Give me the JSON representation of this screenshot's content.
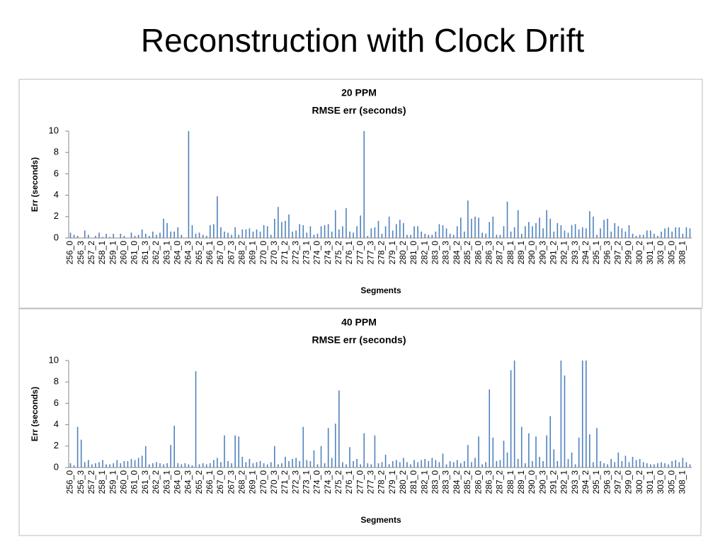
{
  "title": "Reconstruction with Clock Drift",
  "chart_data": [
    {
      "type": "bar",
      "title": "20 PPM",
      "subtitle": "RMSE err (seconds)",
      "y_label": "Err (seconds)",
      "x_label": "Segments",
      "color": "#4f81bd",
      "ylim": [
        0,
        10
      ],
      "yticks": [
        0,
        2,
        4,
        6,
        8,
        10
      ],
      "categories": [
        "256_0",
        null,
        null,
        "256_3",
        null,
        null,
        "257_2",
        null,
        null,
        "258_1",
        null,
        null,
        "259_1",
        null,
        null,
        "260_0",
        null,
        null,
        "261_0",
        null,
        null,
        "261_3",
        null,
        null,
        "262_2",
        null,
        null,
        "263_1",
        null,
        null,
        "264_0",
        null,
        null,
        "264_3",
        null,
        null,
        "265_2",
        null,
        null,
        "266_1",
        null,
        null,
        "267_0",
        null,
        null,
        "267_3",
        null,
        null,
        "268_2",
        null,
        null,
        "269_1",
        null,
        null,
        "270_0",
        null,
        null,
        "270_3",
        null,
        null,
        "271_2",
        null,
        null,
        "272_3",
        null,
        null,
        "273_1",
        null,
        null,
        "274_0",
        null,
        null,
        "274_3",
        null,
        null,
        "275_2",
        null,
        null,
        "276_1",
        null,
        null,
        "277_0",
        null,
        null,
        "277_3",
        null,
        null,
        "278_2",
        null,
        null,
        "279_1",
        null,
        null,
        "280_2",
        null,
        null,
        "281_0",
        null,
        null,
        "282_1",
        null,
        null,
        "283_0",
        null,
        null,
        "283_3",
        null,
        null,
        "284_2",
        null,
        null,
        "285_2",
        null,
        null,
        "286_0",
        null,
        null,
        "286_3",
        null,
        null,
        "287_2",
        null,
        null,
        "288_1",
        null,
        null,
        "289_1",
        null,
        null,
        "290_0",
        null,
        null,
        "290_3",
        null,
        null,
        "291_2",
        null,
        null,
        "292_1",
        null,
        null,
        "293_3",
        null,
        null,
        "294_2",
        null,
        null,
        "295_1",
        null,
        null,
        "296_3",
        null,
        null,
        "297_2",
        null,
        null,
        "299_0",
        null,
        null,
        "300_2",
        null,
        null,
        "301_1",
        null,
        null,
        "303_0",
        null,
        null,
        "305_0",
        null,
        null,
        "308_1",
        null,
        null
      ],
      "values": [
        0.5,
        0.3,
        0.2,
        0,
        0.7,
        0.3,
        0,
        0.2,
        0.5,
        0.1,
        0.4,
        0.1,
        0.4,
        0,
        0.4,
        0.2,
        0,
        0.5,
        0.2,
        0.3,
        0.8,
        0.4,
        0.2,
        0.6,
        0.3,
        0.5,
        1.8,
        1.4,
        0.6,
        0.6,
        1,
        0.3,
        0,
        10,
        1.2,
        0.4,
        0.5,
        0.3,
        0.2,
        1.2,
        1.3,
        3.9,
        1,
        0.6,
        0.5,
        0.3,
        1,
        0.3,
        0.8,
        0.8,
        0.9,
        0.6,
        0.8,
        0.6,
        1.2,
        1.1,
        0.3,
        1.8,
        2.9,
        1.5,
        1.6,
        2.2,
        0.6,
        0.7,
        1.3,
        1.2,
        0.5,
        1.1,
        0.3,
        0.4,
        1.1,
        1.2,
        1.3,
        0.6,
        2.6,
        0.8,
        1.1,
        2.8,
        0.6,
        0.5,
        1.1,
        2.1,
        10,
        0.2,
        0.9,
        1,
        1.6,
        0.4,
        1.1,
        2,
        0.7,
        1.3,
        1.7,
        1.4,
        0.3,
        0.3,
        1.1,
        1.1,
        0.6,
        0.4,
        0.3,
        0.3,
        0.6,
        1.3,
        1.2,
        0.9,
        0.4,
        0.3,
        1.1,
        1.9,
        0.6,
        3.5,
        1.8,
        2,
        1.9,
        0.5,
        0.4,
        1.5,
        2,
        0.3,
        0.3,
        1.1,
        3.4,
        0.6,
        1,
        2.6,
        0.4,
        1.1,
        1.5,
        1.1,
        1.4,
        1.9,
        0.9,
        2.6,
        1.8,
        0.6,
        1.4,
        1.2,
        0.7,
        0.5,
        1.2,
        1.3,
        0.8,
        1,
        0.9,
        2.5,
        2,
        0.3,
        0.9,
        1.7,
        1.8,
        0.6,
        1.4,
        1.1,
        0.9,
        0.6,
        1.2,
        0.4,
        0.2,
        0.3,
        0.3,
        0.7,
        0.7,
        0.4,
        0.2,
        0.6,
        0.9,
        1,
        0.6,
        1,
        1,
        0.4,
        1,
        0.9
      ]
    },
    {
      "type": "bar",
      "title": "40 PPM",
      "subtitle": "RMSE err (seconds)",
      "y_label": "Err (seconds)",
      "x_label": "Segments",
      "color": "#4f81bd",
      "ylim": [
        0,
        10
      ],
      "yticks": [
        0,
        2,
        4,
        6,
        8,
        10
      ],
      "categories": [
        "256_0",
        null,
        null,
        "256_3",
        null,
        null,
        "257_2",
        null,
        null,
        "258_1",
        null,
        null,
        "259_1",
        null,
        null,
        "260_0",
        null,
        null,
        "261_0",
        null,
        null,
        "261_3",
        null,
        null,
        "262_2",
        null,
        null,
        "263_1",
        null,
        null,
        "264_0",
        null,
        null,
        "264_3",
        null,
        null,
        "265_2",
        null,
        null,
        "266_1",
        null,
        null,
        "267_0",
        null,
        null,
        "267_3",
        null,
        null,
        "268_2",
        null,
        null,
        "269_1",
        null,
        null,
        "270_0",
        null,
        null,
        "270_3",
        null,
        null,
        "271_2",
        null,
        null,
        "272_3",
        null,
        null,
        "273_1",
        null,
        null,
        "274_0",
        null,
        null,
        "274_3",
        null,
        null,
        "275_2",
        null,
        null,
        "276_1",
        null,
        null,
        "277_0",
        null,
        null,
        "277_3",
        null,
        null,
        "278_2",
        null,
        null,
        "279_1",
        null,
        null,
        "280_2",
        null,
        null,
        "281_0",
        null,
        null,
        "282_1",
        null,
        null,
        "283_0",
        null,
        null,
        "283_3",
        null,
        null,
        "284_2",
        null,
        null,
        "285_2",
        null,
        null,
        "286_0",
        null,
        null,
        "286_3",
        null,
        null,
        "287_2",
        null,
        null,
        "288_1",
        null,
        null,
        "289_1",
        null,
        null,
        "290_0",
        null,
        null,
        "290_3",
        null,
        null,
        "291_2",
        null,
        null,
        "292_1",
        null,
        null,
        "293_3",
        null,
        null,
        "294_2",
        null,
        null,
        "295_1",
        null,
        null,
        "296_3",
        null,
        null,
        "297_2",
        null,
        null,
        "299_0",
        null,
        null,
        "300_2",
        null,
        null,
        "301_1",
        null,
        null,
        "303_0",
        null,
        null,
        "305_0",
        null,
        null,
        "308_1",
        null,
        null
      ],
      "values": [
        0.4,
        0.2,
        3.8,
        2.6,
        0.5,
        0.7,
        0.3,
        0.4,
        0.5,
        0.7,
        0.3,
        0.3,
        0.4,
        0.7,
        0.4,
        0.6,
        0.6,
        0.8,
        0.7,
        0.9,
        1.1,
        2,
        0.3,
        0.4,
        0.5,
        0.4,
        0.3,
        0.4,
        2.1,
        3.9,
        0.4,
        0.3,
        0.4,
        0.3,
        0.2,
        9,
        0.3,
        0.4,
        0.3,
        0.4,
        0.7,
        0.9,
        0.5,
        3,
        0.6,
        0.4,
        3,
        2.9,
        1,
        0.5,
        0.8,
        0.4,
        0.5,
        0.6,
        0.4,
        0.3,
        0.5,
        2,
        0.3,
        0.4,
        1,
        0.6,
        0.8,
        0.9,
        0.6,
        3.8,
        0.7,
        0.6,
        1.6,
        0.3,
        2,
        0.4,
        3.7,
        0.9,
        4.1,
        7.2,
        0.5,
        0.3,
        1.9,
        0.6,
        0.8,
        0.3,
        3.2,
        0.4,
        0.3,
        3,
        0.4,
        0.5,
        1.2,
        0.3,
        0.6,
        0.7,
        0.5,
        0.9,
        0.5,
        0.3,
        0.7,
        0.5,
        0.7,
        0.8,
        0.6,
        0.9,
        0.7,
        0.5,
        1.3,
        0.3,
        0.6,
        0.5,
        0.7,
        0.4,
        0.6,
        2.1,
        0.5,
        0.9,
        2.9,
        0.3,
        0.5,
        7.3,
        2.8,
        0.6,
        0.7,
        2.5,
        1.4,
        9.1,
        10,
        0.8,
        3.8,
        0.4,
        3.2,
        0.6,
        2.9,
        1,
        0.6,
        3,
        4.8,
        1.7,
        0.6,
        10,
        8.6,
        0.8,
        1.4,
        0.3,
        2.8,
        10,
        10,
        3.1,
        0.5,
        3.7,
        0.6,
        0.4,
        0.3,
        0.8,
        0.5,
        1.4,
        0.6,
        1.1,
        0.5,
        1,
        0.7,
        0.8,
        0.5,
        0.4,
        0.3,
        0.3,
        0.4,
        0.5,
        0.4,
        0.3,
        0.6,
        0.7,
        0.5,
        0.9,
        0.5,
        0.3
      ]
    }
  ]
}
